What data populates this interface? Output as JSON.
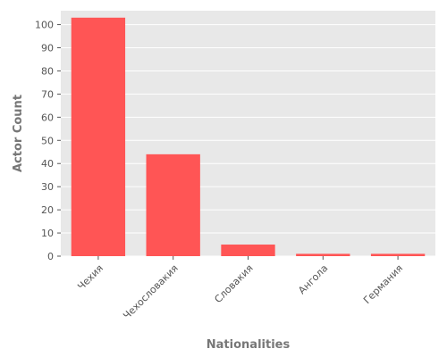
{
  "chart_data": {
    "type": "bar",
    "categories": [
      "Чехия",
      "Чехословакия",
      "Словакия",
      "Ангола",
      "Германия"
    ],
    "values": [
      103,
      44,
      5,
      1,
      1
    ],
    "xlabel": "Nationalities",
    "ylabel": "Actor Count",
    "ylim": [
      0,
      106
    ],
    "yticks": [
      0,
      10,
      20,
      30,
      40,
      50,
      60,
      70,
      80,
      90,
      100
    ],
    "grid": true,
    "colors": {
      "bar": "#ff5555",
      "plot_background": "#e8e8e8",
      "grid": "#ffffff"
    }
  }
}
